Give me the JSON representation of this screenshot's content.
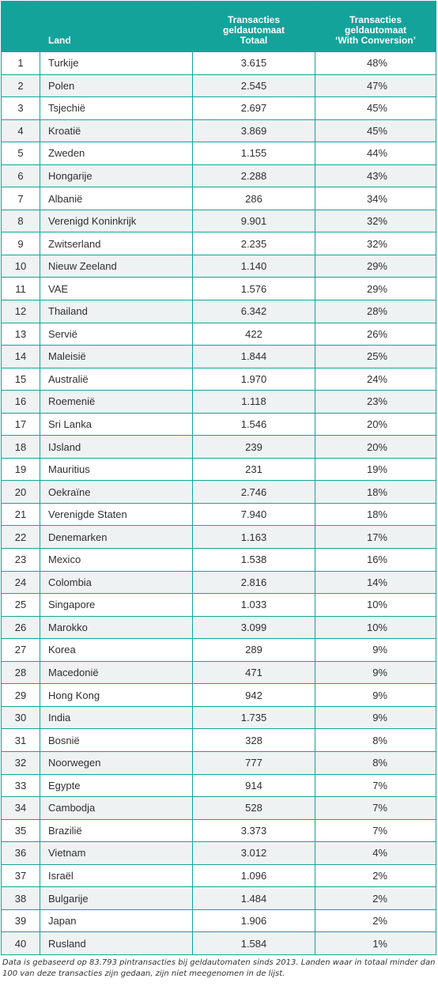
{
  "table": {
    "headers": {
      "num": "",
      "land": "Land",
      "totaal": [
        "Transacties",
        "geldautomaat",
        "Totaal"
      ],
      "conversion": [
        "Transacties",
        "geldautomaat",
        "‘With Conversion’"
      ]
    },
    "rows": [
      {
        "num": "1",
        "land": "Turkije",
        "totaal": "3.615",
        "conversion": "48%"
      },
      {
        "num": "2",
        "land": "Polen",
        "totaal": "2.545",
        "conversion": "47%"
      },
      {
        "num": "3",
        "land": "Tsjechië",
        "totaal": "2.697",
        "conversion": "45%"
      },
      {
        "num": "4",
        "land": "Kroatië",
        "totaal": "3.869",
        "conversion": "45%"
      },
      {
        "num": "5",
        "land": "Zweden",
        "totaal": "1.155",
        "conversion": "44%"
      },
      {
        "num": "6",
        "land": "Hongarije",
        "totaal": "2.288",
        "conversion": "43%"
      },
      {
        "num": "7",
        "land": "Albanië",
        "totaal": "286",
        "conversion": "34%"
      },
      {
        "num": "8",
        "land": "Verenigd Koninkrijk",
        "totaal": "9.901",
        "conversion": "32%"
      },
      {
        "num": "9",
        "land": "Zwitserland",
        "totaal": "2.235",
        "conversion": "32%"
      },
      {
        "num": "10",
        "land": "Nieuw Zeeland",
        "totaal": "1.140",
        "conversion": "29%"
      },
      {
        "num": "11",
        "land": "VAE",
        "totaal": "1.576",
        "conversion": "29%"
      },
      {
        "num": "12",
        "land": "Thailand",
        "totaal": "6.342",
        "conversion": "28%"
      },
      {
        "num": "13",
        "land": "Servië",
        "totaal": "422",
        "conversion": "26%"
      },
      {
        "num": "14",
        "land": "Maleisië",
        "totaal": "1.844",
        "conversion": "25%"
      },
      {
        "num": "15",
        "land": "Australië",
        "totaal": "1.970",
        "conversion": "24%"
      },
      {
        "num": "16",
        "land": "Roemenië",
        "totaal": "1.118",
        "conversion": "23%"
      },
      {
        "num": "17",
        "land": "Sri Lanka",
        "totaal": "1.546",
        "conversion": "20%"
      },
      {
        "num": "18",
        "land": "IJsland",
        "totaal": "239",
        "conversion": "20%"
      },
      {
        "num": "19",
        "land": "Mauritius",
        "totaal": "231",
        "conversion": "19%"
      },
      {
        "num": "20",
        "land": "Oekraïne",
        "totaal": "2.746",
        "conversion": "18%"
      },
      {
        "num": "21",
        "land": "Verenigde Staten",
        "totaal": "7.940",
        "conversion": "18%"
      },
      {
        "num": "22",
        "land": "Denemarken",
        "totaal": "1.163",
        "conversion": "17%"
      },
      {
        "num": "23",
        "land": "Mexico",
        "totaal": "1.538",
        "conversion": "16%"
      },
      {
        "num": "24",
        "land": "Colombia",
        "totaal": "2.816",
        "conversion": "14%"
      },
      {
        "num": "25",
        "land": "Singapore",
        "totaal": "1.033",
        "conversion": "10%"
      },
      {
        "num": "26",
        "land": "Marokko",
        "totaal": "3.099",
        "conversion": "10%"
      },
      {
        "num": "27",
        "land": "Korea",
        "totaal": "289",
        "conversion": "9%"
      },
      {
        "num": "28",
        "land": "Macedonië",
        "totaal": "471",
        "conversion": "9%"
      },
      {
        "num": "29",
        "land": "Hong Kong",
        "totaal": "942",
        "conversion": "9%"
      },
      {
        "num": "30",
        "land": "India",
        "totaal": "1.735",
        "conversion": "9%"
      },
      {
        "num": "31",
        "land": "Bosnië",
        "totaal": "328",
        "conversion": "8%"
      },
      {
        "num": "32",
        "land": "Noorwegen",
        "totaal": "777",
        "conversion": "8%"
      },
      {
        "num": "33",
        "land": "Egypte",
        "totaal": "914",
        "conversion": "7%"
      },
      {
        "num": "34",
        "land": "Cambodja",
        "totaal": "528",
        "conversion": "7%"
      },
      {
        "num": "35",
        "land": "Brazilië",
        "totaal": "3.373",
        "conversion": "7%"
      },
      {
        "num": "36",
        "land": "Vietnam",
        "totaal": "3.012",
        "conversion": "4%"
      },
      {
        "num": "37",
        "land": "Israël",
        "totaal": "1.096",
        "conversion": "2%"
      },
      {
        "num": "38",
        "land": "Bulgarije",
        "totaal": "1.484",
        "conversion": "2%"
      },
      {
        "num": "39",
        "land": "Japan",
        "totaal": "1.906",
        "conversion": "2%"
      },
      {
        "num": "40",
        "land": "Rusland",
        "totaal": "1.584",
        "conversion": "1%"
      }
    ]
  },
  "footnote": "Data is gebaseerd op 83.793 pintransacties bij geldautomaten sinds 2013. Landen waar in totaal minder dan 100 van deze transacties zijn gedaan, zijn niet meegenomen in de lijst.",
  "colors": {
    "header_bg": "#14a39a",
    "border": "#15a39b",
    "stripe": "#eef2f2"
  }
}
